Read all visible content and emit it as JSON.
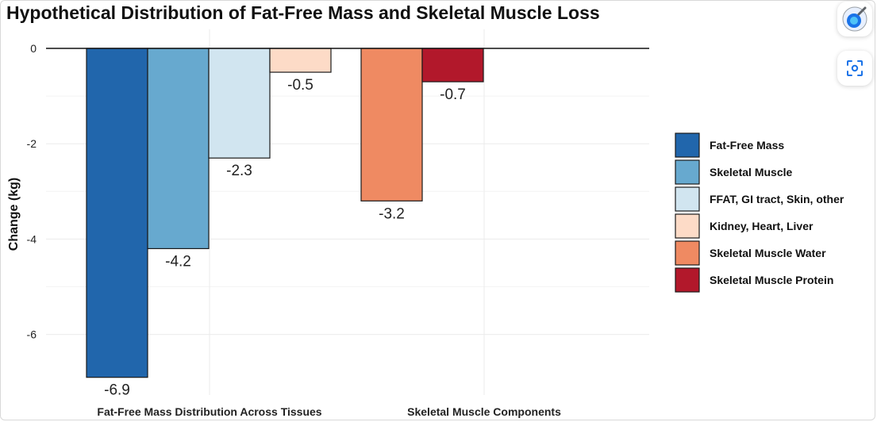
{
  "chart_data": {
    "type": "bar",
    "title": "Hypothetical Distribution of Fat-Free Mass and Skeletal Muscle Loss",
    "ylabel": "Change (kg)",
    "xlabel": "",
    "ylim": [
      -7.2,
      0.3
    ],
    "yticks": [
      0,
      -2,
      -4,
      -6
    ],
    "grid": true,
    "legend_position": "right",
    "groups": [
      {
        "label": "Fat-Free Mass Distribution Across Tissues",
        "bars": [
          {
            "name": "Fat-Free Mass",
            "value": -6.9,
            "label": "-6.9"
          },
          {
            "name": "Skeletal Muscle",
            "value": -4.2,
            "label": "-4.2"
          },
          {
            "name": "FFAT, GI tract, Skin, other",
            "value": -2.3,
            "label": "-2.3"
          },
          {
            "name": "Kidney, Heart, Liver",
            "value": -0.5,
            "label": "-0.5"
          }
        ]
      },
      {
        "label": "Skeletal Muscle Components",
        "bars": [
          {
            "name": "Skeletal Muscle Water",
            "value": -3.2,
            "label": "-3.2"
          },
          {
            "name": "Skeletal Muscle Protein",
            "value": -0.7,
            "label": "-0.7"
          }
        ]
      }
    ],
    "legend": [
      {
        "name": "Fat-Free Mass",
        "color": "#2166ac"
      },
      {
        "name": "Skeletal Muscle",
        "color": "#67a9cf"
      },
      {
        "name": "FFAT, GI tract, Skin, other",
        "color": "#d1e5f0"
      },
      {
        "name": "Kidney, Heart, Liver",
        "color": "#fddbc7"
      },
      {
        "name": "Skeletal Muscle Water",
        "color": "#ef8a62"
      },
      {
        "name": "Skeletal Muscle Protein",
        "color": "#b2182b"
      }
    ]
  },
  "toolbar": {
    "lens_icon": "google-lens-icon",
    "scan_icon": "screen-search-icon"
  }
}
